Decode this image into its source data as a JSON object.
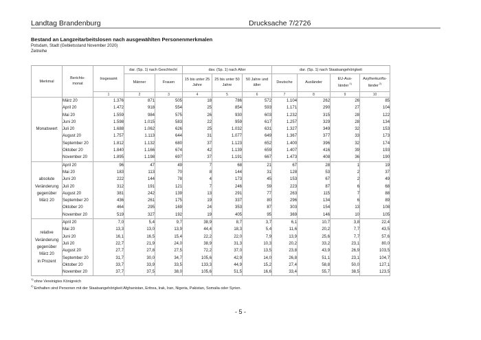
{
  "page": {
    "header_left": "Landtag Brandenburg",
    "header_right": "Drucksache 7/2726",
    "page_number": "- 5 -"
  },
  "document": {
    "title": "Bestand an Langzeitarbeitslosen nach ausgewählten Personenmerkmalen",
    "subtitle_region": "Potsdam, Stadt (Gebietsstand November 2020)",
    "subtitle_series": "Zeitreihe"
  },
  "table": {
    "header": {
      "merkmal": "Merkmal",
      "berichtsmonat": "Berichts-\nmonat",
      "insgesamt": "Insgesamt",
      "group_geschlecht": "dar. (Sp. 1) nach Geschlecht",
      "group_alter": "dav. (Sp. 1) nach Alter",
      "group_staatsangehoerigkeit": "dar. (Sp. 1) nach Staatsangehörigkeit",
      "maenner": "Männer",
      "frauen": "Frauen",
      "alter_15_25": "15 bis unter 25\nJahre",
      "alter_25_50": "25 bis unter 50\nJahre",
      "alter_50_plus": "50 Jahre und\nälter",
      "deutsche": "Deutsche",
      "auslaender": "Ausländer",
      "eu_label": "EU-Aus-\nländer",
      "eu_sup": "1)",
      "asyl_label": "Asylherkunfts-\nländer",
      "asyl_sup": "2)",
      "column_numbers": [
        "1",
        "2",
        "3",
        "4",
        "5",
        "6",
        "7",
        "8",
        "9",
        "10"
      ]
    },
    "sections": [
      {
        "label": "Monatswert",
        "rows": [
          {
            "month": "März 20",
            "values": [
              "1.376",
              "871",
              "505",
              "18",
              "786",
              "572",
              "1.104",
              "262",
              "26",
              "85"
            ]
          },
          {
            "month": "April 20",
            "values": [
              "1.472",
              "918",
              "554",
              "25",
              "854",
              "593",
              "1.171",
              "290",
              "27",
              "104"
            ]
          },
          {
            "month": "Mai 20",
            "values": [
              "1.559",
              "984",
              "575",
              "26",
              "930",
              "603",
              "1.232",
              "315",
              "28",
              "122"
            ]
          },
          {
            "month": "Juni 20",
            "values": [
              "1.598",
              "1.015",
              "583",
              "22",
              "959",
              "617",
              "1.257",
              "329",
              "28",
              "134"
            ]
          },
          {
            "month": "Juli 20",
            "values": [
              "1.688",
              "1.062",
              "626",
              "25",
              "1.032",
              "631",
              "1.327",
              "349",
              "32",
              "153"
            ]
          },
          {
            "month": "August 20",
            "values": [
              "1.757",
              "1.113",
              "644",
              "31",
              "1.077",
              "649",
              "1.367",
              "377",
              "33",
              "173"
            ]
          },
          {
            "month": "September 20",
            "values": [
              "1.812",
              "1.132",
              "680",
              "37",
              "1.123",
              "652",
              "1.400",
              "396",
              "32",
              "174"
            ]
          },
          {
            "month": "Oktober 20",
            "values": [
              "1.840",
              "1.166",
              "674",
              "42",
              "1.139",
              "659",
              "1.407",
              "416",
              "39",
              "193"
            ]
          },
          {
            "month": "November 20",
            "values": [
              "1.895",
              "1.198",
              "697",
              "37",
              "1.191",
              "667",
              "1.473",
              "408",
              "36",
              "190"
            ]
          }
        ]
      },
      {
        "label": "absolute\nVeränderung\ngegenüber\nMärz 20",
        "rows": [
          {
            "month": "April 20",
            "values": [
              "96",
              "47",
              "49",
              "7",
              "68",
              "21",
              "67",
              "28",
              "1",
              "19"
            ]
          },
          {
            "month": "Mai 20",
            "values": [
              "183",
              "113",
              "70",
              "8",
              "144",
              "31",
              "128",
              "53",
              "2",
              "37"
            ]
          },
          {
            "month": "Juni 20",
            "values": [
              "222",
              "144",
              "78",
              "4",
              "173",
              "45",
              "153",
              "67",
              "2",
              "49"
            ]
          },
          {
            "month": "Juli 20",
            "values": [
              "312",
              "191",
              "121",
              "7",
              "246",
              "59",
              "223",
              "87",
              "6",
              "68"
            ]
          },
          {
            "month": "August 20",
            "values": [
              "381",
              "242",
              "139",
              "13",
              "291",
              "77",
              "263",
              "115",
              "7",
              "88"
            ]
          },
          {
            "month": "September 20",
            "values": [
              "436",
              "261",
              "175",
              "19",
              "337",
              "80",
              "296",
              "134",
              "6",
              "89"
            ]
          },
          {
            "month": "Oktober 20",
            "values": [
              "464",
              "295",
              "169",
              "24",
              "353",
              "87",
              "303",
              "154",
              "13",
              "108"
            ]
          },
          {
            "month": "November 20",
            "values": [
              "519",
              "327",
              "192",
              "19",
              "405",
              "95",
              "369",
              "146",
              "10",
              "105"
            ]
          }
        ]
      },
      {
        "label": "relative\nVeränderung\ngegenüber\nMärz 20\nin Prozent",
        "rows": [
          {
            "month": "April 20",
            "values": [
              "7,0",
              "5,4",
              "9,7",
              "38,9",
              "8,7",
              "3,7",
              "6,1",
              "10,7",
              "3,8",
              "22,4"
            ]
          },
          {
            "month": "Mai 20",
            "values": [
              "13,3",
              "13,0",
              "13,9",
              "44,4",
              "18,3",
              "5,4",
              "11,6",
              "20,2",
              "7,7",
              "43,5"
            ]
          },
          {
            "month": "Juni 20",
            "values": [
              "16,1",
              "16,5",
              "15,4",
              "22,2",
              "22,0",
              "7,9",
              "13,9",
              "25,6",
              "7,7",
              "57,6"
            ]
          },
          {
            "month": "Juli 20",
            "values": [
              "22,7",
              "21,9",
              "24,0",
              "38,9",
              "31,3",
              "10,3",
              "20,2",
              "33,2",
              "23,1",
              "80,0"
            ]
          },
          {
            "month": "August 20",
            "values": [
              "27,7",
              "27,8",
              "27,5",
              "72,2",
              "37,0",
              "13,5",
              "23,8",
              "43,9",
              "26,9",
              "103,5"
            ]
          },
          {
            "month": "September 20",
            "values": [
              "31,7",
              "30,0",
              "34,7",
              "105,6",
              "42,9",
              "14,0",
              "26,8",
              "51,1",
              "23,1",
              "104,7"
            ]
          },
          {
            "month": "Oktober 20",
            "values": [
              "33,7",
              "33,9",
              "33,5",
              "133,3",
              "44,9",
              "15,2",
              "27,4",
              "58,8",
              "50,0",
              "127,1"
            ]
          },
          {
            "month": "November 20",
            "values": [
              "37,7",
              "37,5",
              "38,0",
              "105,6",
              "51,5",
              "16,6",
              "33,4",
              "55,7",
              "38,5",
              "123,5"
            ]
          }
        ]
      }
    ]
  },
  "footnotes": [
    {
      "sup": "1)",
      "text": "ohne Vereinigtes Königreich"
    },
    {
      "sup": "2)",
      "text": "Enthalten sind Personen mit der Staatsangehörigkeit Afghanistan, Eritrea, Irak, Iran, Nigeria, Pakistan, Somalia oder Syrien."
    }
  ]
}
